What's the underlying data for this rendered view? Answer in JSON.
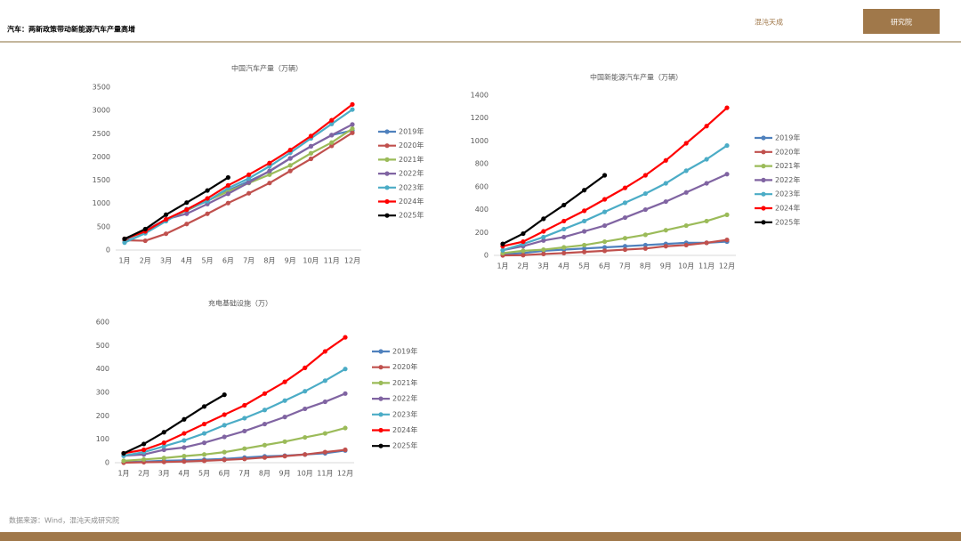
{
  "header": {
    "title": "汽车：两新政策带动新能源汽车产量高增"
  },
  "logo": {
    "name": "混沌天成",
    "unit": "研究院"
  },
  "source": "数据来源：Wind，混沌天成研究院",
  "chart_data": [
    {
      "type": "line",
      "title": "中国汽车产量（万辆）",
      "categories": [
        "1月",
        "2月",
        "3月",
        "4月",
        "5月",
        "6月",
        "7月",
        "8月",
        "9月",
        "10月",
        "11月",
        "12月"
      ],
      "ylim": [
        0,
        3500
      ],
      "yticks": [
        0,
        500,
        1000,
        1500,
        2000,
        2500,
        3000,
        3500
      ],
      "grid": false,
      "legend": "right",
      "series": [
        {
          "name": "2019年",
          "color": "#4f81bd",
          "values": [
            210,
            410,
            640,
            850,
            1060,
            1280,
            1480,
            1690,
            1970,
            2230,
            2470,
            2570
          ]
        },
        {
          "name": "2020年",
          "color": "#c0504d",
          "values": [
            210,
            200,
            350,
            560,
            780,
            1010,
            1220,
            1440,
            1700,
            1960,
            2240,
            2520
          ]
        },
        {
          "name": "2021年",
          "color": "#9bbb59",
          "values": [
            240,
            390,
            630,
            860,
            1060,
            1260,
            1440,
            1620,
            1820,
            2080,
            2310,
            2610
          ]
        },
        {
          "name": "2022年",
          "color": "#8064a2",
          "values": [
            240,
            420,
            660,
            780,
            990,
            1210,
            1450,
            1700,
            1970,
            2230,
            2470,
            2700
          ]
        },
        {
          "name": "2023年",
          "color": "#4bacc6",
          "values": [
            160,
            360,
            620,
            880,
            1050,
            1330,
            1540,
            1800,
            2090,
            2400,
            2710,
            3020
          ]
        },
        {
          "name": "2024年",
          "color": "#ff0000",
          "values": [
            240,
            400,
            660,
            870,
            1110,
            1390,
            1620,
            1870,
            2150,
            2450,
            2790,
            3130
          ]
        },
        {
          "name": "2025年",
          "color": "#000000",
          "values": [
            240,
            450,
            760,
            1020,
            1280,
            1560,
            null,
            null,
            null,
            null,
            null,
            null
          ]
        }
      ]
    },
    {
      "type": "line",
      "title": "中国新能源汽车产量（万辆）",
      "categories": [
        "1月",
        "2月",
        "3月",
        "4月",
        "5月",
        "6月",
        "7月",
        "8月",
        "9月",
        "10月",
        "11月",
        "12月"
      ],
      "ylim": [
        0,
        1400
      ],
      "yticks": [
        0,
        200,
        400,
        600,
        800,
        1000,
        1200,
        1400
      ],
      "grid": false,
      "legend": "right",
      "series": [
        {
          "name": "2019年",
          "color": "#4f81bd",
          "values": [
            10,
            20,
            40,
            50,
            60,
            70,
            80,
            90,
            100,
            110,
            110,
            120
          ]
        },
        {
          "name": "2020年",
          "color": "#c0504d",
          "values": [
            0,
            2,
            12,
            20,
            30,
            40,
            50,
            60,
            80,
            90,
            110,
            135
          ]
        },
        {
          "name": "2021年",
          "color": "#9bbb59",
          "values": [
            20,
            40,
            50,
            70,
            90,
            120,
            150,
            180,
            220,
            260,
            300,
            355
          ]
        },
        {
          "name": "2022年",
          "color": "#8064a2",
          "values": [
            45,
            80,
            130,
            160,
            210,
            260,
            330,
            400,
            470,
            550,
            630,
            710
          ]
        },
        {
          "name": "2023年",
          "color": "#4bacc6",
          "values": [
            45,
            100,
            160,
            230,
            300,
            380,
            460,
            540,
            630,
            740,
            840,
            960
          ]
        },
        {
          "name": "2024年",
          "color": "#ff0000",
          "values": [
            80,
            120,
            210,
            300,
            390,
            490,
            590,
            700,
            830,
            980,
            1130,
            1290
          ]
        },
        {
          "name": "2025年",
          "color": "#000000",
          "values": [
            100,
            190,
            320,
            440,
            570,
            700,
            null,
            null,
            null,
            null,
            null,
            null
          ]
        }
      ]
    },
    {
      "type": "line",
      "title": "充电基础设施（万）",
      "categories": [
        "1月",
        "2月",
        "3月",
        "4月",
        "5月",
        "6月",
        "7月",
        "8月",
        "9月",
        "10月",
        "11月",
        "12月"
      ],
      "ylim": [
        0,
        600
      ],
      "yticks": [
        0,
        100,
        200,
        300,
        400,
        500,
        600
      ],
      "grid": false,
      "legend": "right",
      "series": [
        {
          "name": "2019年",
          "color": "#4f81bd",
          "values": [
            2,
            5,
            8,
            10,
            13,
            16,
            22,
            27,
            30,
            35,
            40,
            52
          ]
        },
        {
          "name": "2020年",
          "color": "#c0504d",
          "values": [
            0,
            2,
            3,
            5,
            8,
            12,
            16,
            22,
            28,
            35,
            45,
            55
          ]
        },
        {
          "name": "2021年",
          "color": "#9bbb59",
          "values": [
            8,
            14,
            20,
            28,
            35,
            45,
            60,
            75,
            90,
            108,
            125,
            148
          ]
        },
        {
          "name": "2022年",
          "color": "#8064a2",
          "values": [
            30,
            35,
            55,
            65,
            85,
            110,
            135,
            165,
            195,
            230,
            260,
            295
          ]
        },
        {
          "name": "2023年",
          "color": "#4bacc6",
          "values": [
            30,
            45,
            70,
            95,
            125,
            160,
            190,
            225,
            265,
            305,
            350,
            400
          ]
        },
        {
          "name": "2024年",
          "color": "#ff0000",
          "values": [
            40,
            55,
            85,
            125,
            165,
            205,
            245,
            295,
            345,
            405,
            475,
            535
          ]
        },
        {
          "name": "2025年",
          "color": "#000000",
          "values": [
            40,
            80,
            130,
            185,
            240,
            290,
            null,
            null,
            null,
            null,
            null,
            null
          ]
        }
      ]
    }
  ]
}
